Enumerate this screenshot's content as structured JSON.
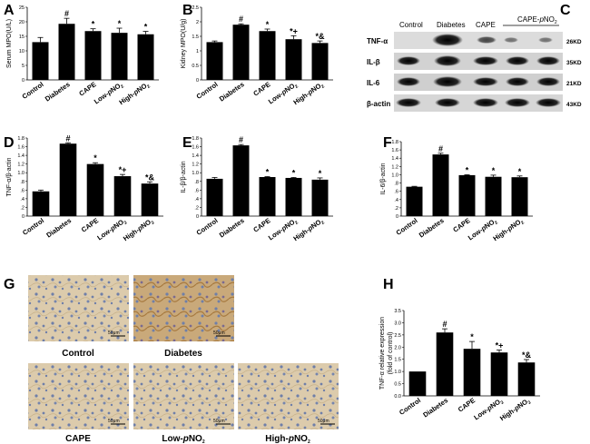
{
  "panels": {
    "A": "A",
    "B": "B",
    "C": "C",
    "D": "D",
    "E": "E",
    "F": "F",
    "G": "G",
    "H": "H"
  },
  "chart_data": [
    {
      "id": "A",
      "type": "bar",
      "categories": [
        "Control",
        "Diabetes",
        "CAPE",
        "Low-pNO2",
        "High-pNO2"
      ],
      "values": [
        13,
        19.3,
        16.8,
        16.2,
        15.7
      ],
      "errors": [
        1.6,
        1.9,
        0.8,
        1.6,
        1.0
      ],
      "annotations": [
        "",
        "#",
        "*",
        "*",
        "*"
      ],
      "ylabel": "Serum MPO(U/L)",
      "ylim": [
        0,
        25
      ],
      "yticks": [
        0,
        5,
        10,
        15,
        20,
        25
      ]
    },
    {
      "id": "B",
      "type": "bar",
      "categories": [
        "Control",
        "Diabetes",
        "CAPE",
        "Low-pNO2",
        "High-pNO2"
      ],
      "values": [
        1.3,
        1.9,
        1.68,
        1.4,
        1.27
      ],
      "errors": [
        0.04,
        0.03,
        0.07,
        0.12,
        0.07
      ],
      "annotations": [
        "",
        "#",
        "*",
        "*+",
        "*&"
      ],
      "ylabel": "Kidney MPO(U/g)",
      "ylim": [
        0,
        2.5
      ],
      "yticks": [
        0,
        0.5,
        1,
        1.5,
        2,
        2.5
      ]
    },
    {
      "id": "D",
      "type": "bar",
      "categories": [
        "Control",
        "Diabetes",
        "CAPE",
        "Low-pNO2",
        "High-pNO2"
      ],
      "values": [
        0.57,
        1.67,
        1.2,
        0.92,
        0.75
      ],
      "errors": [
        0.03,
        0.02,
        0.03,
        0.04,
        0.04
      ],
      "annotations": [
        "",
        "#",
        "*",
        "*+",
        "*&"
      ],
      "ylabel": "TNF-α/β-actin",
      "ylim": [
        0,
        1.8
      ],
      "yticks": [
        0,
        0.2,
        0.4,
        0.6,
        0.8,
        1.0,
        1.2,
        1.4,
        1.6,
        1.8
      ]
    },
    {
      "id": "E",
      "type": "bar",
      "categories": [
        "Control",
        "Diabetes",
        "CAPE",
        "Low-pNO2",
        "High-pNO2"
      ],
      "values": [
        0.86,
        1.63,
        0.9,
        0.88,
        0.84
      ],
      "errors": [
        0.03,
        0.02,
        0.01,
        0.01,
        0.04
      ],
      "annotations": [
        "",
        "#",
        "*",
        "*",
        "*"
      ],
      "ylabel": "IL-β/β-actin",
      "ylim": [
        0,
        1.8
      ],
      "yticks": [
        0,
        0.2,
        0.4,
        0.6,
        0.8,
        1.0,
        1.2,
        1.4,
        1.6,
        1.8
      ]
    },
    {
      "id": "F",
      "type": "bar",
      "categories": [
        "Control",
        "Diabetes",
        "CAPE",
        "Low-pNO2",
        "High-pNO2"
      ],
      "values": [
        0.71,
        1.49,
        0.99,
        0.95,
        0.94
      ],
      "errors": [
        0.01,
        0.03,
        0.01,
        0.04,
        0.03
      ],
      "annotations": [
        "",
        "#",
        "*",
        "*",
        "*"
      ],
      "ylabel": "IL-6/β-actin",
      "ylim": [
        0,
        1.8
      ],
      "yticks": [
        0,
        0.2,
        0.4,
        0.6,
        0.8,
        1.0,
        1.2,
        1.4,
        1.6,
        1.8
      ]
    },
    {
      "id": "H",
      "type": "bar",
      "categories": [
        "Control",
        "Diabetes",
        "CAPE",
        "Low-pNO2",
        "High-pNO2"
      ],
      "values": [
        1.0,
        2.6,
        1.93,
        1.78,
        1.37
      ],
      "errors": [
        0,
        0.15,
        0.3,
        0.1,
        0.12
      ],
      "annotations": [
        "",
        "#",
        "*",
        "*+",
        "*&"
      ],
      "ylabel": "TNF-α relative expression (fold of control)",
      "ylim": [
        0,
        3.5
      ],
      "yticks": [
        0,
        0.5,
        1.0,
        1.5,
        2.0,
        2.5,
        3.0,
        3.5
      ]
    }
  ],
  "western_blot": {
    "headers": [
      "Control",
      "Diabetes",
      "CAPE",
      "CAPE-pNO2"
    ],
    "bands": [
      {
        "label": "TNF-α",
        "size": "26KD"
      },
      {
        "label": "IL-β",
        "size": "35KD"
      },
      {
        "label": "IL-6",
        "size": "21KD"
      },
      {
        "label": "β-actin",
        "size": "43KD"
      }
    ]
  },
  "micrographs": {
    "captions": [
      "Control",
      "Diabetes",
      "CAPE",
      "Low-pNO2",
      "High-pNO2"
    ],
    "scale_bar": "50μm"
  },
  "colors": {
    "bar": "#000000",
    "tissue": "#d9c7a6",
    "nuclei": "#5b6e9a",
    "stain": "#b08850"
  }
}
